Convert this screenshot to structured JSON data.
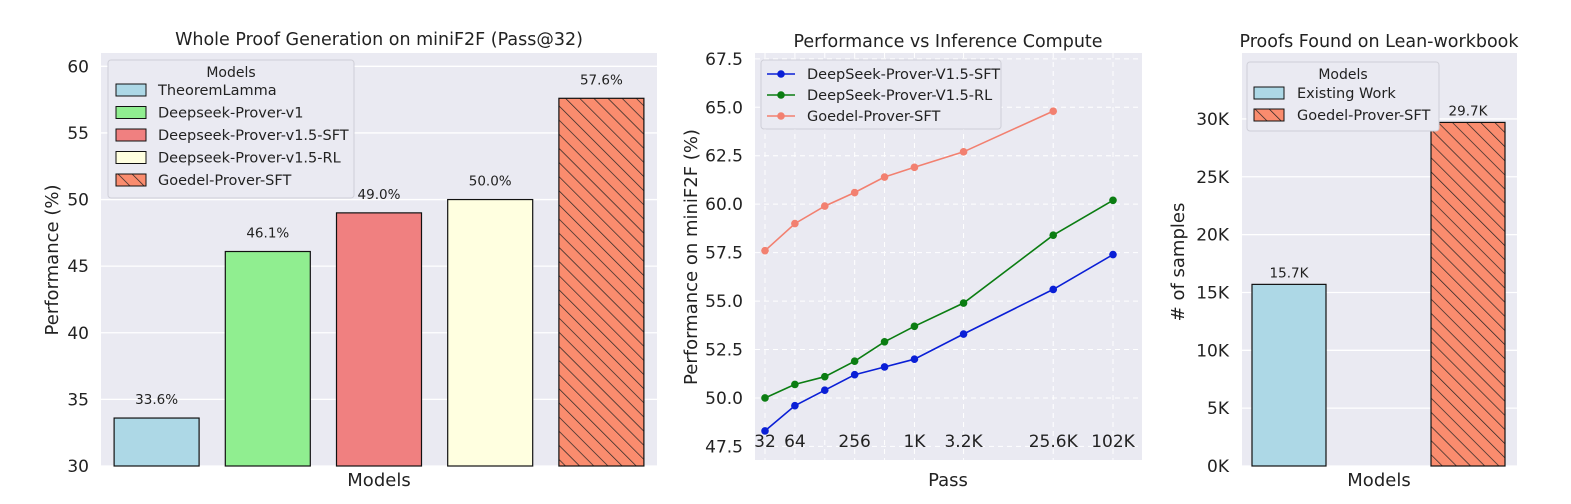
{
  "chart_data": [
    {
      "type": "bar",
      "title": "Whole Proof Generation on miniF2F (Pass@32)",
      "xlabel": "Models",
      "ylabel": "Performance (%)",
      "ylim": [
        30,
        61
      ],
      "yticks": [
        "30",
        "35",
        "40",
        "45",
        "50",
        "55",
        "60"
      ],
      "grid": true,
      "legend_title": "Models",
      "legend_position": "top-left",
      "categories": [
        "TheoremLamma",
        "Deepseek-Prover-v1",
        "Deepseek-Prover-v1.5-SFT",
        "Deepseek-Prover-v1.5-RL",
        "Goedel-Prover-SFT"
      ],
      "values": [
        33.6,
        46.1,
        49.0,
        50.0,
        57.6
      ],
      "value_labels": [
        "33.6%",
        "46.1%",
        "49.0%",
        "50.0%",
        "57.6%"
      ],
      "colors": [
        "#add8e6",
        "#90ee90",
        "#f08080",
        "#ffffe0",
        "#fa8c6e"
      ],
      "hatched": [
        false,
        false,
        false,
        false,
        true
      ]
    },
    {
      "type": "line",
      "title": "Performance vs Inference Compute",
      "xlabel": "Pass",
      "ylabel": "Performance on miniF2F (%)",
      "ylim": [
        46.8,
        67.8
      ],
      "yticks": [
        "47.5",
        "50.0",
        "52.5",
        "55.0",
        "57.5",
        "60.0",
        "62.5",
        "65.0",
        "67.5"
      ],
      "xticks": [
        "32",
        "64",
        "256",
        "1K",
        "3.2K",
        "25.6K",
        "102K"
      ],
      "grid": true,
      "legend_position": "top-left",
      "x": [
        32,
        64,
        128,
        256,
        512,
        1024,
        3200,
        25600,
        102400
      ],
      "series": [
        {
          "name": "DeepSeek-Prover-V1.5-SFT",
          "color": "#0a1fd6",
          "x": [
            32,
            64,
            128,
            256,
            512,
            1024,
            3200,
            25600,
            102400
          ],
          "values": [
            48.3,
            49.6,
            50.4,
            51.2,
            51.6,
            52.0,
            53.3,
            55.6,
            57.4
          ]
        },
        {
          "name": "DeepSeek-Prover-V1.5-RL",
          "color": "#0b7d12",
          "x": [
            32,
            64,
            128,
            256,
            512,
            1024,
            3200,
            25600,
            102400
          ],
          "values": [
            50.0,
            50.7,
            51.1,
            51.9,
            52.9,
            53.7,
            54.9,
            58.4,
            60.2
          ]
        },
        {
          "name": "Goedel-Prover-SFT",
          "color": "#f28070",
          "x": [
            32,
            64,
            128,
            256,
            512,
            1024,
            3200,
            25600
          ],
          "values": [
            57.6,
            59.0,
            59.9,
            60.6,
            61.4,
            61.9,
            62.7,
            64.8
          ]
        }
      ]
    },
    {
      "type": "bar",
      "title": "Proofs Found on Lean-workbook",
      "xlabel": "Models",
      "ylabel": "# of samples",
      "ylim": [
        0,
        35700
      ],
      "yticks": [
        "0K",
        "5K",
        "10K",
        "15K",
        "20K",
        "25K",
        "30K"
      ],
      "grid": true,
      "legend_title": "Models",
      "legend_position": "top-left",
      "categories": [
        "Existing Work",
        "Goedel-Prover-SFT"
      ],
      "values": [
        15700,
        29700
      ],
      "value_labels": [
        "15.7K",
        "29.7K"
      ],
      "colors": [
        "#add8e6",
        "#fa8c6e"
      ],
      "hatched": [
        false,
        true
      ]
    }
  ]
}
